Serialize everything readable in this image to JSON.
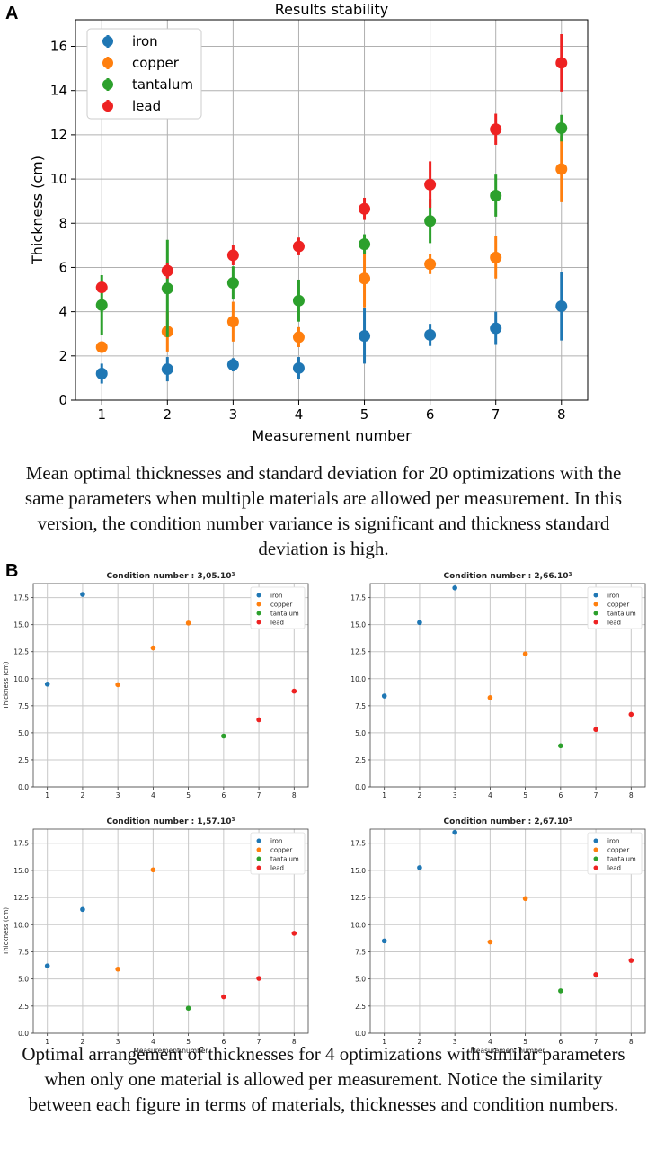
{
  "panel_a_label": "A",
  "panel_b_label": "B",
  "caption_a": "Mean optimal thicknesses and standard deviation for 20 optimizations with the same parameters when multiple materials are allowed per measurement. In this version, the condition number variance is significant and thickness standard deviation is high.",
  "caption_b": "Optimal arrangement of thicknesses for 4 optimizations with similar parameters when only one material is allowed per measurement. Notice the similarity between each figure in terms of materials, thicknesses and condition numbers.",
  "colors": {
    "iron": "#1f77b4",
    "copper": "#ff7f0e",
    "tantalum": "#2ca02c",
    "lead": "#ee2222"
  },
  "chart_data": [
    {
      "type": "scatter",
      "title": "Results stability",
      "xlabel": "Measurement number",
      "ylabel": "Thickness (cm)",
      "xlim": [
        0.6,
        8.4
      ],
      "ylim": [
        0,
        17.2
      ],
      "xticks": [
        "1",
        "2",
        "3",
        "4",
        "5",
        "6",
        "7",
        "8"
      ],
      "yticks": [
        "0",
        "2",
        "4",
        "6",
        "8",
        "10",
        "12",
        "14",
        "16"
      ],
      "x": [
        1,
        2,
        3,
        4,
        5,
        6,
        7,
        8
      ],
      "legend": "top-left",
      "grid": true,
      "series": [
        {
          "name": "iron",
          "values": [
            1.2,
            1.4,
            1.6,
            1.45,
            2.9,
            2.95,
            3.25,
            4.25
          ],
          "errors": [
            0.45,
            0.55,
            0.3,
            0.5,
            1.25,
            0.5,
            0.75,
            1.55
          ]
        },
        {
          "name": "copper",
          "values": [
            2.4,
            3.1,
            3.55,
            2.85,
            5.5,
            6.15,
            6.45,
            10.45
          ],
          "errors": [
            0.25,
            0.9,
            0.9,
            0.45,
            1.3,
            0.45,
            0.95,
            1.5
          ]
        },
        {
          "name": "tantalum",
          "values": [
            4.3,
            5.05,
            5.3,
            4.5,
            7.05,
            8.1,
            9.25,
            12.3
          ],
          "errors": [
            1.35,
            2.2,
            0.75,
            0.95,
            0.45,
            1.0,
            0.95,
            0.6
          ]
        },
        {
          "name": "lead",
          "values": [
            5.1,
            5.85,
            6.55,
            6.95,
            8.65,
            9.75,
            12.25,
            15.25
          ],
          "errors": [
            0.2,
            0.35,
            0.45,
            0.4,
            0.5,
            1.05,
            0.7,
            1.3
          ]
        }
      ]
    },
    {
      "type": "scatter",
      "title": "Condition number : 3,05.10³",
      "ylabel": "Thickness (cm)",
      "xlabel": "",
      "ylim": [
        0,
        18.8
      ],
      "xticks": [
        "1",
        "2",
        "3",
        "4",
        "5",
        "6",
        "7",
        "8"
      ],
      "yticks": [
        "0.0",
        "2.5",
        "5.0",
        "7.5",
        "10.0",
        "12.5",
        "15.0",
        "17.5"
      ],
      "legend": "top-right",
      "points": [
        {
          "x": 1,
          "y": 9.5,
          "material": "iron"
        },
        {
          "x": 2,
          "y": 17.8,
          "material": "iron"
        },
        {
          "x": 3,
          "y": 9.45,
          "material": "copper"
        },
        {
          "x": 4,
          "y": 12.85,
          "material": "copper"
        },
        {
          "x": 5,
          "y": 15.15,
          "material": "copper"
        },
        {
          "x": 6,
          "y": 4.7,
          "material": "tantalum"
        },
        {
          "x": 7,
          "y": 6.2,
          "material": "lead"
        },
        {
          "x": 8,
          "y": 8.85,
          "material": "lead"
        }
      ]
    },
    {
      "type": "scatter",
      "title": "Condition number : 2,66.10³",
      "ylabel": "",
      "xlabel": "",
      "ylim": [
        0,
        18.8
      ],
      "xticks": [
        "1",
        "2",
        "3",
        "4",
        "5",
        "6",
        "7",
        "8"
      ],
      "yticks": [
        "0.0",
        "2.5",
        "5.0",
        "7.5",
        "10.0",
        "12.5",
        "15.0",
        "17.5"
      ],
      "legend": "top-right",
      "points": [
        {
          "x": 1,
          "y": 8.4,
          "material": "iron"
        },
        {
          "x": 2,
          "y": 15.2,
          "material": "iron"
        },
        {
          "x": 3,
          "y": 18.4,
          "material": "iron"
        },
        {
          "x": 4,
          "y": 8.25,
          "material": "copper"
        },
        {
          "x": 5,
          "y": 12.3,
          "material": "copper"
        },
        {
          "x": 6,
          "y": 3.8,
          "material": "tantalum"
        },
        {
          "x": 7,
          "y": 5.3,
          "material": "lead"
        },
        {
          "x": 8,
          "y": 6.7,
          "material": "lead"
        }
      ]
    },
    {
      "type": "scatter",
      "title": "Condition number : 1,57.10³",
      "ylabel": "Thickness (cm)",
      "xlabel": "Measurement number",
      "ylim": [
        0,
        18.8
      ],
      "xticks": [
        "1",
        "2",
        "3",
        "4",
        "5",
        "6",
        "7",
        "8"
      ],
      "yticks": [
        "0.0",
        "2.5",
        "5.0",
        "7.5",
        "10.0",
        "12.5",
        "15.0",
        "17.5"
      ],
      "legend": "top-right",
      "points": [
        {
          "x": 1,
          "y": 6.2,
          "material": "iron"
        },
        {
          "x": 2,
          "y": 11.4,
          "material": "iron"
        },
        {
          "x": 3,
          "y": 5.9,
          "material": "copper"
        },
        {
          "x": 4,
          "y": 15.05,
          "material": "copper"
        },
        {
          "x": 5,
          "y": 2.3,
          "material": "tantalum"
        },
        {
          "x": 6,
          "y": 3.35,
          "material": "lead"
        },
        {
          "x": 7,
          "y": 5.05,
          "material": "lead"
        },
        {
          "x": 8,
          "y": 9.2,
          "material": "lead"
        }
      ]
    },
    {
      "type": "scatter",
      "title": "Condition number : 2,67.10³",
      "ylabel": "",
      "xlabel": "Measurement number",
      "ylim": [
        0,
        18.8
      ],
      "xticks": [
        "1",
        "2",
        "3",
        "4",
        "5",
        "6",
        "7",
        "8"
      ],
      "yticks": [
        "0.0",
        "2.5",
        "5.0",
        "7.5",
        "10.0",
        "12.5",
        "15.0",
        "17.5"
      ],
      "legend": "top-right",
      "points": [
        {
          "x": 1,
          "y": 8.5,
          "material": "iron"
        },
        {
          "x": 2,
          "y": 15.25,
          "material": "iron"
        },
        {
          "x": 3,
          "y": 18.5,
          "material": "iron"
        },
        {
          "x": 4,
          "y": 8.4,
          "material": "copper"
        },
        {
          "x": 5,
          "y": 12.4,
          "material": "copper"
        },
        {
          "x": 6,
          "y": 3.9,
          "material": "tantalum"
        },
        {
          "x": 7,
          "y": 5.4,
          "material": "lead"
        },
        {
          "x": 8,
          "y": 6.7,
          "material": "lead"
        }
      ]
    }
  ]
}
